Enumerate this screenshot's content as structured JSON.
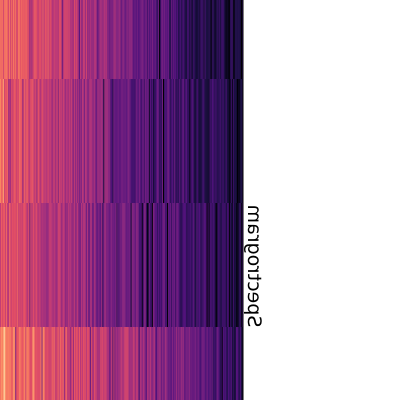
{
  "chart_data": {
    "type": "heatmap",
    "colormap": "magma",
    "rows": 4,
    "columns": 240,
    "row_value_profiles": [
      [
        0.78,
        0.74,
        0.68,
        0.6,
        0.5,
        0.4,
        0.3,
        0.22,
        0.16,
        0.1
      ],
      [
        0.8,
        0.72,
        0.6,
        0.52,
        0.44,
        0.36,
        0.3,
        0.24,
        0.18,
        0.12
      ],
      [
        0.74,
        0.68,
        0.58,
        0.5,
        0.44,
        0.38,
        0.32,
        0.26,
        0.2,
        0.14
      ],
      [
        0.84,
        0.8,
        0.74,
        0.68,
        0.62,
        0.56,
        0.48,
        0.4,
        0.3,
        0.18
      ]
    ],
    "value_range": [
      0,
      1
    ],
    "label": "Spectrogram",
    "grid": false,
    "legend": "none"
  },
  "colors": {
    "background": "#ffffff",
    "cmap_low": "#3b0f70",
    "cmap_mid": "#b73779",
    "cmap_high": "#fc8961",
    "cmap_peak": "#fcb27a"
  }
}
